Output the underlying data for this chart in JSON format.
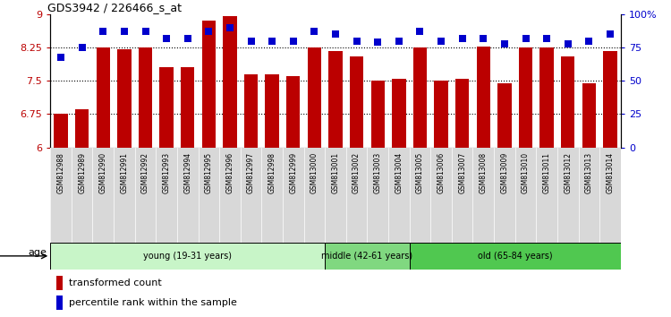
{
  "title": "GDS3942 / 226466_s_at",
  "samples": [
    "GSM812988",
    "GSM812989",
    "GSM812990",
    "GSM812991",
    "GSM812992",
    "GSM812993",
    "GSM812994",
    "GSM812995",
    "GSM812996",
    "GSM812997",
    "GSM812998",
    "GSM812999",
    "GSM813000",
    "GSM813001",
    "GSM813002",
    "GSM813003",
    "GSM813004",
    "GSM813005",
    "GSM813006",
    "GSM813007",
    "GSM813008",
    "GSM813009",
    "GSM813010",
    "GSM813011",
    "GSM813012",
    "GSM813013",
    "GSM813014"
  ],
  "transformed_count": [
    6.75,
    6.85,
    8.25,
    8.22,
    8.25,
    7.8,
    7.8,
    8.85,
    8.95,
    7.65,
    7.65,
    7.6,
    8.25,
    8.18,
    8.05,
    7.5,
    7.55,
    8.25,
    7.5,
    7.55,
    8.28,
    7.45,
    8.25,
    8.25,
    8.05,
    7.45,
    8.18
  ],
  "percentile_rank": [
    68,
    75,
    87,
    87,
    87,
    82,
    82,
    87,
    90,
    80,
    80,
    80,
    87,
    85,
    80,
    79,
    80,
    87,
    80,
    82,
    82,
    78,
    82,
    82,
    78,
    80,
    85
  ],
  "bar_color": "#bb0000",
  "dot_color": "#0000cc",
  "ylim_left": [
    6.0,
    9.0
  ],
  "ylim_right": [
    0,
    100
  ],
  "yticks_left": [
    6.0,
    6.75,
    7.5,
    8.25,
    9.0
  ],
  "ytick_labels_left": [
    "6",
    "6.75",
    "7.5",
    "8.25",
    "9"
  ],
  "yticks_right": [
    0,
    25,
    50,
    75,
    100
  ],
  "ytick_labels_right": [
    "0",
    "25",
    "50",
    "75",
    "100%"
  ],
  "grid_values": [
    6.75,
    7.5,
    8.25
  ],
  "groups": [
    {
      "label": "young (19-31 years)",
      "start": 0,
      "end": 13,
      "color": "#c8f5c8"
    },
    {
      "label": "middle (42-61 years)",
      "start": 13,
      "end": 17,
      "color": "#80d880"
    },
    {
      "label": "old (65-84 years)",
      "start": 17,
      "end": 27,
      "color": "#50c850"
    }
  ],
  "age_label": "age",
  "legend_bar_label": "transformed count",
  "legend_dot_label": "percentile rank within the sample",
  "bar_width": 0.65,
  "dot_size": 28,
  "bg_color": "#ffffff",
  "xtick_bg": "#d8d8d8"
}
